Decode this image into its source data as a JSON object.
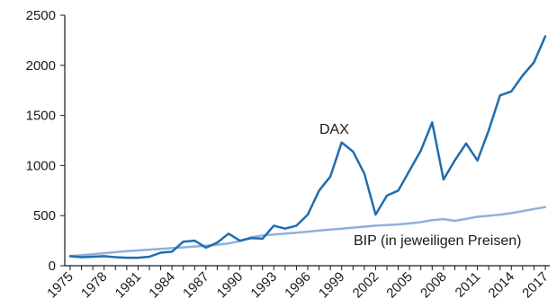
{
  "chart_data": {
    "type": "line",
    "title": "",
    "xlabel": "",
    "ylabel": "",
    "xlim": [
      1975,
      2017
    ],
    "ylim": [
      0,
      2500
    ],
    "yticks": [
      0,
      500,
      1000,
      1500,
      2000,
      2500
    ],
    "xticks": [
      1975,
      1978,
      1981,
      1984,
      1987,
      1990,
      1993,
      1996,
      1999,
      2002,
      2005,
      2008,
      2011,
      2014,
      2017
    ],
    "grid": false,
    "legend": "none",
    "x": [
      1975,
      1976,
      1977,
      1978,
      1979,
      1980,
      1981,
      1982,
      1983,
      1984,
      1985,
      1986,
      1987,
      1988,
      1989,
      1990,
      1991,
      1992,
      1993,
      1994,
      1995,
      1996,
      1997,
      1998,
      1999,
      2000,
      2001,
      2002,
      2003,
      2004,
      2005,
      2006,
      2007,
      2008,
      2009,
      2010,
      2011,
      2012,
      2013,
      2014,
      2015,
      2016,
      2017
    ],
    "series": [
      {
        "name": "DAX",
        "color": "#1f6db0",
        "values": [
          95,
          85,
          90,
          95,
          85,
          80,
          80,
          90,
          130,
          140,
          240,
          250,
          180,
          230,
          320,
          250,
          275,
          270,
          400,
          370,
          400,
          510,
          750,
          890,
          1230,
          1140,
          920,
          510,
          700,
          750,
          950,
          1150,
          1430,
          860,
          1050,
          1220,
          1050,
          1350,
          1700,
          1740,
          1900,
          2030,
          2290
        ]
      },
      {
        "name": "BIP (in jeweiligen Preisen)",
        "color": "#8fb0dc",
        "values": [
          95,
          105,
          115,
          125,
          135,
          145,
          152,
          160,
          168,
          176,
          184,
          192,
          200,
          210,
          222,
          245,
          285,
          302,
          312,
          320,
          330,
          340,
          350,
          360,
          370,
          380,
          390,
          400,
          405,
          412,
          422,
          435,
          455,
          465,
          448,
          468,
          488,
          498,
          510,
          525,
          545,
          565,
          585
        ]
      }
    ]
  }
}
